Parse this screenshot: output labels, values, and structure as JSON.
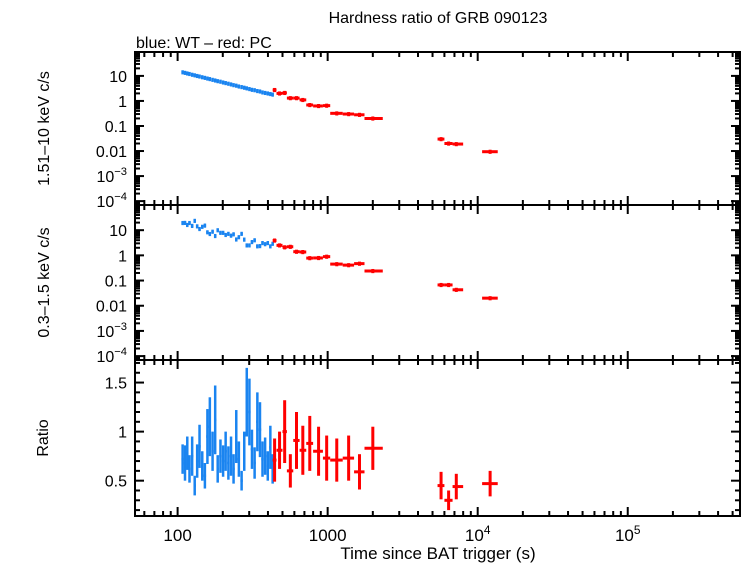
{
  "chart_data": {
    "type": "scatter",
    "title": "Hardness ratio of GRB 090123",
    "subtitle": "blue: WT – red: PC",
    "xlabel": "Time since BAT trigger (s)",
    "xscale": "log",
    "xlim": [
      52,
      560000
    ],
    "x_ticks": [
      {
        "v": 100,
        "label": "100"
      },
      {
        "v": 1000,
        "label": "1000"
      },
      {
        "v": 10000,
        "label": "10",
        "exp": "4"
      },
      {
        "v": 100000,
        "label": "10",
        "exp": "5"
      }
    ],
    "colors": {
      "WT": "#1a84f0",
      "PC": "#ff0000"
    },
    "panels": [
      {
        "id": "hard",
        "ylabel": "1.51–10 keV c/s",
        "yscale": "log",
        "ylim": [
          7e-05,
          90
        ],
        "y_ticks": [
          {
            "v": 10,
            "label": "10"
          },
          {
            "v": 1,
            "label": "1"
          },
          {
            "v": 0.1,
            "label": "0.1"
          },
          {
            "v": 0.01,
            "label": "0.01"
          },
          {
            "v": 0.001,
            "label": "10",
            "exp": "−3"
          },
          {
            "v": 0.0001,
            "label": "10",
            "exp": "−4"
          }
        ]
      },
      {
        "id": "soft",
        "ylabel": "0.3–1.5 keV c/s",
        "yscale": "log",
        "ylim": [
          7e-05,
          100
        ],
        "y_ticks": [
          {
            "v": 10,
            "label": "10"
          },
          {
            "v": 1,
            "label": "1"
          },
          {
            "v": 0.1,
            "label": "0.1"
          },
          {
            "v": 0.01,
            "label": "0.01"
          },
          {
            "v": 0.001,
            "label": "10",
            "exp": "−3"
          },
          {
            "v": 0.0001,
            "label": "10",
            "exp": "−4"
          }
        ]
      },
      {
        "id": "ratio",
        "ylabel": "Ratio",
        "yscale": "linear",
        "ylim": [
          0.14,
          1.73
        ],
        "y_ticks": [
          {
            "v": 1.5,
            "label": "1.5"
          },
          {
            "v": 1,
            "label": "1"
          },
          {
            "v": 0.5,
            "label": "0.5"
          }
        ]
      }
    ],
    "series": [
      {
        "name": "WT",
        "color_key": "WT",
        "xerr_frac": 0.018,
        "t": [
          108,
          112,
          116,
          120,
          125,
          130,
          135,
          140,
          146,
          152,
          158,
          164,
          171,
          178,
          185,
          193,
          201,
          209,
          218,
          227,
          236,
          246,
          256,
          267,
          278,
          289,
          301,
          313,
          326,
          340,
          354,
          368,
          383,
          399,
          415,
          430
        ],
        "hard": [
          14,
          13.3,
          12.6,
          12,
          11.2,
          10.6,
          10,
          9.5,
          8.9,
          8.4,
          7.9,
          7.5,
          7.0,
          6.6,
          6.2,
          5.9,
          5.5,
          5.2,
          4.9,
          4.6,
          4.3,
          4.1,
          3.8,
          3.6,
          3.4,
          3.2,
          3.0,
          2.8,
          2.7,
          2.5,
          2.4,
          2.2,
          2.1,
          2.0,
          1.9,
          1.8
        ],
        "soft": [
          19.4,
          19.6,
          16.2,
          19.4,
          14.9,
          23.6,
          14.3,
          11.2,
          13.7,
          15.3,
          8.3,
          7.1,
          8.75,
          5.9,
          10.0,
          7.9,
          7.9,
          6.5,
          7.2,
          6.1,
          6.9,
          4.3,
          5.3,
          7.2,
          4.25,
          2.5,
          2.5,
          3.4,
          4.0,
          2.3,
          2.35,
          3.1,
          2.8,
          3.1,
          2.3,
          2.9
        ],
        "ratio": [
          0.72,
          0.68,
          0.78,
          0.62,
          0.75,
          0.45,
          0.7,
          0.85,
          0.65,
          0.55,
          0.95,
          1.05,
          0.8,
          1.12,
          0.62,
          0.75,
          0.7,
          0.8,
          0.68,
          0.75,
          0.62,
          0.95,
          0.72,
          0.5,
          0.8,
          1.3,
          1.2,
          0.82,
          0.68,
          1.1,
          1.02,
          0.72,
          0.75,
          0.65,
          0.84,
          0.62
        ],
        "ratio_err": [
          0.15,
          0.18,
          0.17,
          0.14,
          0.2,
          0.1,
          0.17,
          0.22,
          0.15,
          0.13,
          0.28,
          0.3,
          0.2,
          0.35,
          0.14,
          0.17,
          0.16,
          0.2,
          0.17,
          0.2,
          0.15,
          0.27,
          0.18,
          0.1,
          0.2,
          0.35,
          0.34,
          0.2,
          0.16,
          0.3,
          0.28,
          0.18,
          0.19,
          0.15,
          0.22,
          0.15
        ]
      },
      {
        "name": "PC",
        "color_key": "PC",
        "t": [
          443,
          478,
          517,
          564,
          620,
          683,
          760,
          870,
          985,
          1150,
          1380,
          1630,
          2000,
          5700,
          6400,
          7200,
          12100
        ],
        "t_lo": [
          430,
          456,
          500,
          535,
          590,
          650,
          720,
          800,
          930,
          1040,
          1260,
          1500,
          1760,
          5400,
          6000,
          6800,
          10700
        ],
        "t_hi": [
          456,
          500,
          535,
          590,
          650,
          720,
          800,
          930,
          1040,
          1260,
          1500,
          1760,
          2330,
          6000,
          6800,
          8000,
          13600
        ],
        "hard": [
          2.75,
          2.0,
          2.1,
          1.3,
          1.3,
          1.1,
          0.69,
          0.63,
          0.65,
          0.32,
          0.3,
          0.28,
          0.2,
          0.03,
          0.02,
          0.019,
          0.0094
        ],
        "soft": [
          3.9,
          2.5,
          2.1,
          2.2,
          1.4,
          1.36,
          0.78,
          0.79,
          0.89,
          0.45,
          0.41,
          0.47,
          0.24,
          0.067,
          0.067,
          0.043,
          0.02
        ],
        "ratio": [
          0.71,
          0.81,
          1.0,
          0.6,
          0.91,
          0.81,
          0.88,
          0.8,
          0.73,
          0.71,
          0.73,
          0.59,
          0.83,
          0.45,
          0.3,
          0.44,
          0.47
        ],
        "ratio_err": [
          0.22,
          0.19,
          0.32,
          0.17,
          0.29,
          0.25,
          0.28,
          0.25,
          0.23,
          0.22,
          0.23,
          0.18,
          0.22,
          0.14,
          0.1,
          0.13,
          0.13
        ]
      }
    ]
  }
}
